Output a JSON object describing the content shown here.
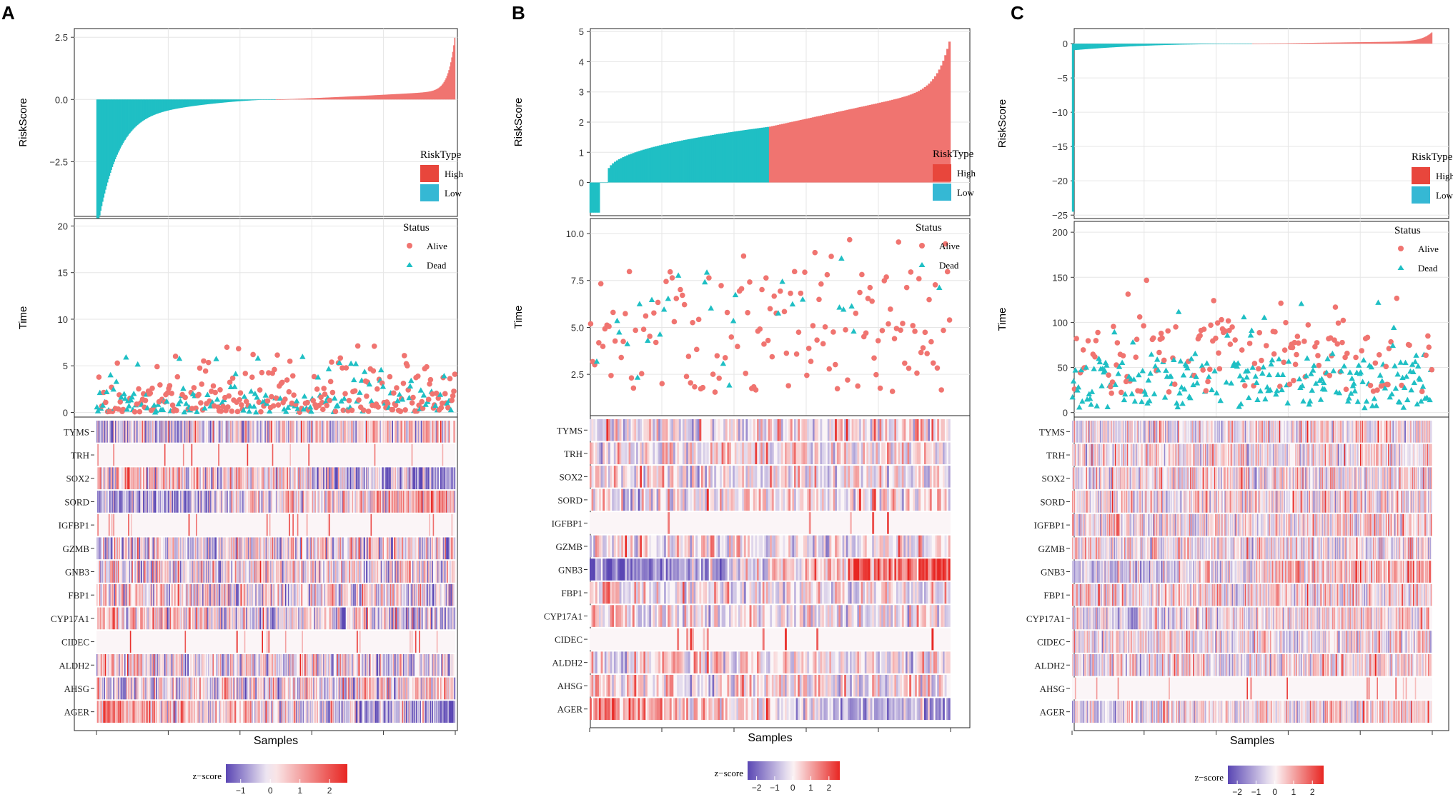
{
  "figure": {
    "gene_order": [
      "TYMS",
      "TRH",
      "SOX2",
      "SORD",
      "IGFBP1",
      "GZMB",
      "GNB3",
      "FBP1",
      "CYP17A1",
      "CIDEC",
      "ALDH2",
      "AHSG",
      "AGER"
    ],
    "colors": {
      "high": "#f07470",
      "low": "#1fbfc4",
      "legend_high": "#e8463c",
      "legend_low": "#35b8d4",
      "z_low": "#5a46b4",
      "z_mid": "#fbf5f7",
      "z_high": "#e82622",
      "panel_border": "#222222",
      "grid": "#e6e6e6"
    },
    "panels": [
      {
        "label": "A",
        "seed": 11,
        "n_samples": 370,
        "chart_data": {
          "type": "risk-plot",
          "risk": {
            "ylabel": "RiskScore",
            "ylim": [
              -4.7,
              2.85
            ],
            "yticks": [
              2.5,
              0.0,
              -2.5
            ],
            "ytick_labels": [
              "2.5",
              "0.0",
              "−2.5"
            ],
            "cutoff_fraction": 0.5,
            "min_value": -4.5,
            "max_value": 2.75,
            "shape": "A",
            "legend_title": "RiskType",
            "legend_items": [
              "High",
              "Low"
            ]
          },
          "survival": {
            "ylabel": "Time",
            "ylim": [
              -0.5,
              20.8
            ],
            "yticks": [
              0,
              5,
              10,
              15,
              20
            ],
            "ytick_labels": [
              "0",
              "5",
              "10",
              "15",
              "20"
            ],
            "dead_rate": 0.45,
            "time_scale": 2.2,
            "time_cap": 19.8,
            "legend_title": "Status",
            "legend_items": [
              "Alive",
              "Dead"
            ]
          },
          "heatmap": {
            "xlabel": "Samples",
            "genes": [
              "TYMS",
              "TRH",
              "SOX2",
              "SORD",
              "IGFBP1",
              "GZMB",
              "GNB3",
              "FBP1",
              "CYP17A1",
              "CIDEC",
              "ALDH2",
              "AHSG",
              "AGER"
            ],
            "column_width": 1.3,
            "trend": [
              0.3,
              0,
              -0.7,
              0.9,
              0,
              0.1,
              0.1,
              -0.3,
              -0.4,
              0,
              -0.2,
              0.3,
              -0.9
            ],
            "sparse": [
              0,
              1,
              0,
              0,
              1,
              0,
              0,
              0,
              0,
              1,
              0,
              0,
              0
            ],
            "zscale": {
              "title": "z−score",
              "ticks": [
                "−1",
                "0",
                "1",
                "2"
              ],
              "range": [
                -1.5,
                2.6
              ]
            }
          }
        }
      },
      {
        "label": "B",
        "seed": 23,
        "n_samples": 177,
        "chart_data": {
          "type": "risk-plot",
          "risk": {
            "ylabel": "RiskScore",
            "ylim": [
              -1.1,
              5.1
            ],
            "yticks": [
              0,
              1,
              2,
              3,
              4,
              5
            ],
            "ytick_labels": [
              "0",
              "1",
              "2",
              "3",
              "4",
              "5"
            ],
            "cutoff_fraction": 0.5,
            "min_value": -1.0,
            "max_value": 4.8,
            "shape": "B",
            "legend_title": "RiskType",
            "legend_items": [
              "High",
              "Low"
            ]
          },
          "survival": {
            "ylabel": "Time",
            "ylim": [
              0.3,
              10.8
            ],
            "yticks": [
              2.5,
              5.0,
              7.5,
              10.0
            ],
            "ytick_labels": [
              "2.5",
              "5.0",
              "7.5",
              "10.0"
            ],
            "dead_rate": 0.12,
            "time_scale": 5.0,
            "time_cap": 10.3,
            "legend_title": "Status",
            "legend_items": [
              "Alive",
              "Dead"
            ]
          },
          "heatmap": {
            "xlabel": "Samples",
            "genes": [
              "TYMS",
              "TRH",
              "SOX2",
              "SORD",
              "IGFBP1",
              "GZMB",
              "GNB3",
              "FBP1",
              "CYP17A1",
              "CIDEC",
              "ALDH2",
              "AHSG",
              "AGER"
            ],
            "column_width": 2.6,
            "trend": [
              0.3,
              0.2,
              0,
              0.3,
              0,
              0,
              2.2,
              0,
              0,
              0,
              0,
              0,
              -1.4
            ],
            "sparse": [
              0,
              0,
              0,
              0,
              1,
              0,
              0,
              0,
              0,
              1,
              0,
              0,
              0
            ],
            "zscale": {
              "title": "z−score",
              "ticks": [
                "−2",
                "−1",
                "0",
                "1",
                "2"
              ],
              "range": [
                -2.5,
                2.6
              ]
            }
          }
        }
      },
      {
        "label": "C",
        "seed": 37,
        "n_samples": 370,
        "chart_data": {
          "type": "risk-plot",
          "risk": {
            "ylabel": "RiskScore",
            "ylim": [
              -25.5,
              2.2
            ],
            "yticks": [
              0,
              -5,
              -10,
              -15,
              -20,
              -25
            ],
            "ytick_labels": [
              "0",
              "−5",
              "−10",
              "−15",
              "−20",
              "−25"
            ],
            "cutoff_fraction": 0.5,
            "min_value": -24.5,
            "max_value": 1.7,
            "shape": "C",
            "legend_title": "RiskType",
            "legend_items": [
              "High",
              "Low"
            ]
          },
          "survival": {
            "ylabel": "Time",
            "ylim": [
              -5,
              212
            ],
            "yticks": [
              0,
              50,
              100,
              150,
              200
            ],
            "ytick_labels": [
              "0",
              "50",
              "100",
              "150",
              "200"
            ],
            "dead_rate": 0.55,
            "time_scale": 45,
            "time_cap": 205,
            "legend_title": "Status",
            "legend_items": [
              "Alive",
              "Dead"
            ]
          },
          "heatmap": {
            "xlabel": "Samples",
            "genes": [
              "TYMS",
              "TRH",
              "SOX2",
              "SORD",
              "IGFBP1",
              "GZMB",
              "GNB3",
              "FBP1",
              "CYP17A1",
              "CIDEC",
              "ALDH2",
              "AHSG",
              "AGER"
            ],
            "column_width": 1.3,
            "trend": [
              0.2,
              0,
              0,
              0,
              0,
              0,
              0.8,
              0,
              0.3,
              0,
              0.3,
              0,
              0.4
            ],
            "sparse": [
              0,
              0,
              0,
              0,
              0,
              0,
              0,
              0,
              0,
              0,
              0,
              1,
              0
            ],
            "zscale": {
              "title": "z−score",
              "ticks": [
                "−2",
                "−1",
                "0",
                "1",
                "2"
              ],
              "range": [
                -2.5,
                2.6
              ]
            }
          }
        }
      }
    ]
  }
}
